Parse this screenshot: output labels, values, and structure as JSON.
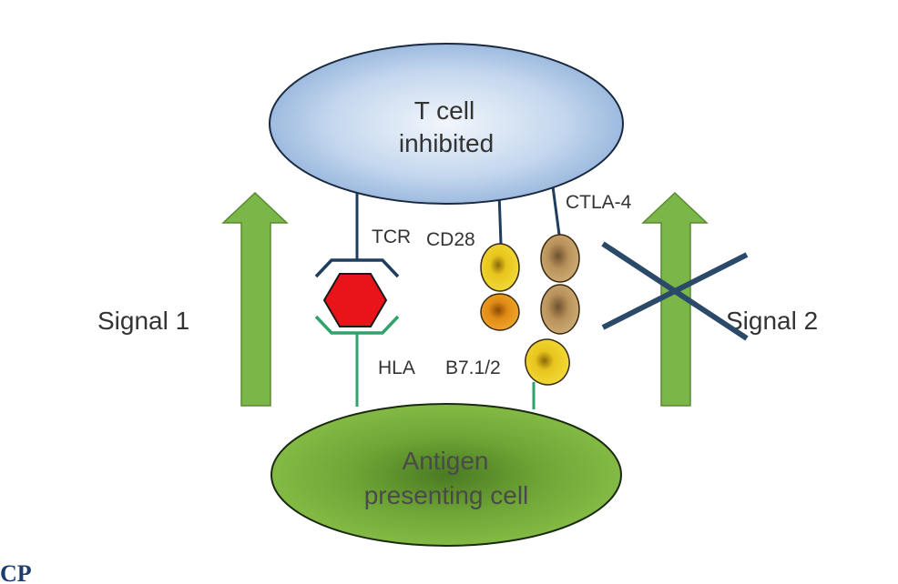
{
  "tcell": {
    "line1": "T cell",
    "line2": "inhibited"
  },
  "apc": {
    "line1": "Antigen",
    "line2": "presenting cell"
  },
  "labels": {
    "tcr": "TCR",
    "cd28": "CD28",
    "ctla4": "CTLA-4",
    "hla": "HLA",
    "b7": "B7.1/2"
  },
  "signals": {
    "signal1": "Signal 1",
    "signal2": "Signal 2"
  },
  "corner_text": "CP",
  "colors": {
    "arrow_green": "#7ab648",
    "tcell_blue": "#9dbde2",
    "apc_green": "#7bb341",
    "antigen_red": "#e8141a",
    "receptor_navy": "#1f3d5c",
    "hla_green": "#2fa36b",
    "cross_navy": "#2b4a6a",
    "cd28_yellow": "#e6c21a",
    "cd28_orange": "#e08a14",
    "ctla4_tan": "#b8915a"
  }
}
